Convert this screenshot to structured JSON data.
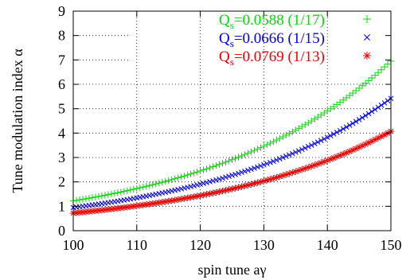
{
  "chart_data": {
    "type": "scatter",
    "xlabel": "spin tune aγ",
    "ylabel": "Tune modulation index α",
    "xlim": [
      100,
      150
    ],
    "ylim": [
      0,
      9
    ],
    "xticks": [
      "100",
      "110",
      "120",
      "130",
      "140",
      "150"
    ],
    "yticks": [
      "0",
      "1",
      "2",
      "3",
      "4",
      "5",
      "6",
      "7",
      "8",
      "9"
    ],
    "grid": true,
    "legend_position": "top-right",
    "series": [
      {
        "name": "Q_s=0.0588 (1/17)",
        "label_parts": {
          "main": "Q",
          "sub": "s",
          "rest": "=0.0588 (1/17)"
        },
        "color": "#00dd00",
        "marker": "plus",
        "x_range": [
          100,
          150
        ],
        "start_y": 1.22,
        "end_y": 6.95
      },
      {
        "name": "Q_s=0.0666 (1/15)",
        "label_parts": {
          "main": "Q",
          "sub": "s",
          "rest": "=0.0666 (1/15)"
        },
        "color": "#0000ee",
        "marker": "x",
        "x_range": [
          100,
          150
        ],
        "start_y": 0.95,
        "end_y": 5.42
      },
      {
        "name": "Q_s=0.0769 (1/13)",
        "label_parts": {
          "main": "Q",
          "sub": "s",
          "rest": "=0.0769 (1/13)"
        },
        "color": "#ee0000",
        "marker": "star",
        "x_range": [
          100,
          150
        ],
        "start_y": 0.72,
        "end_y": 4.07
      }
    ]
  }
}
